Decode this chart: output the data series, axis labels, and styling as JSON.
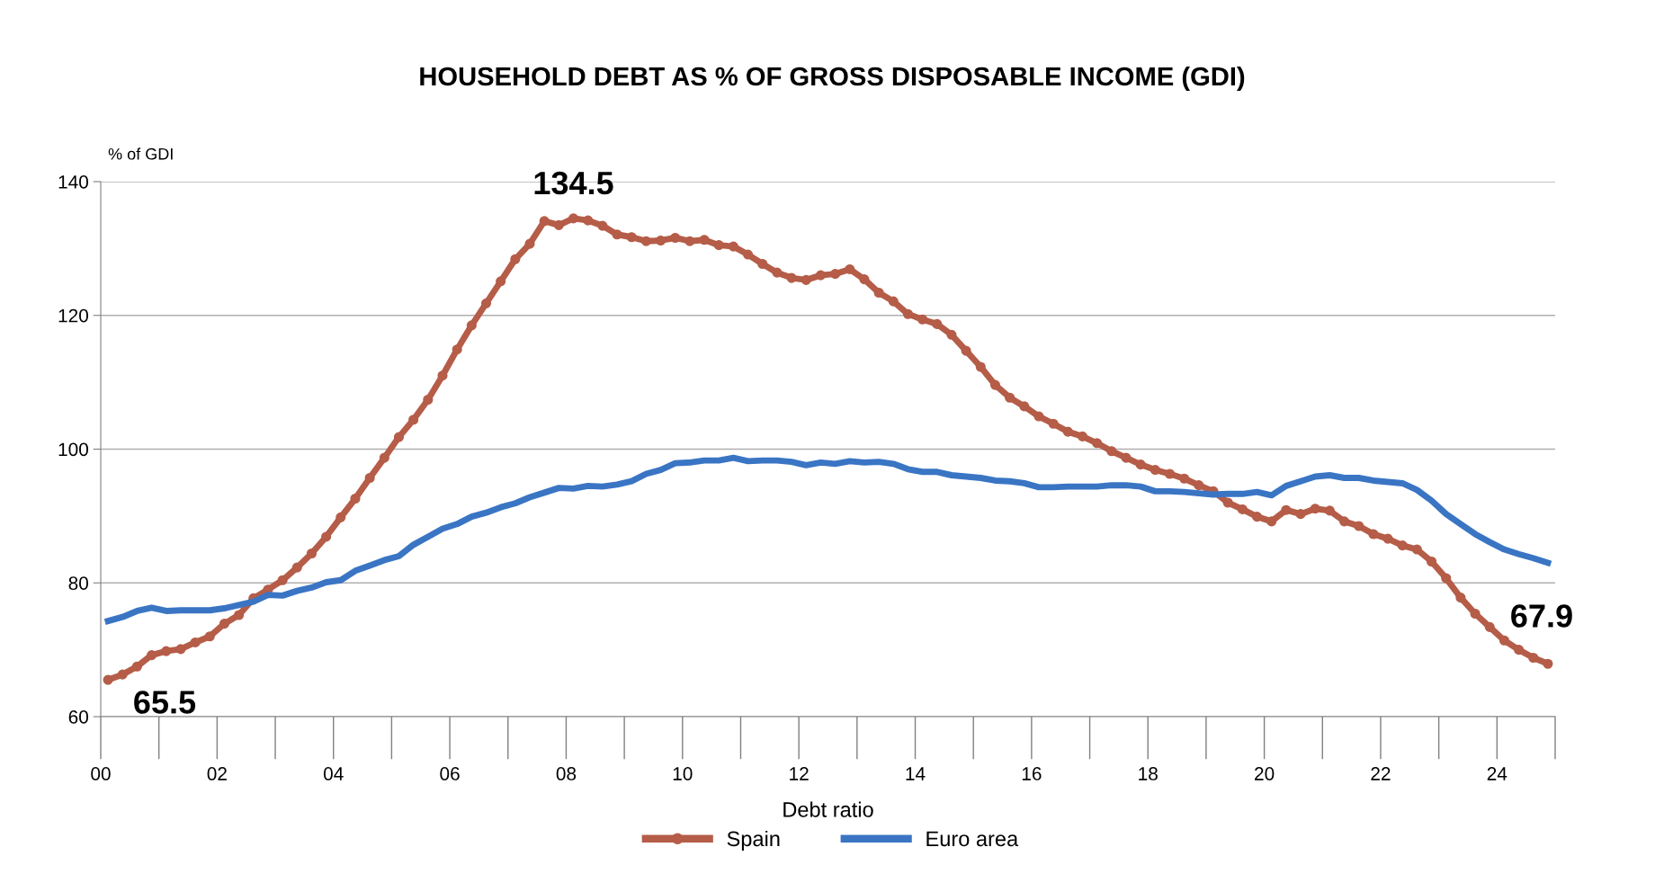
{
  "chart_data": {
    "type": "line",
    "title": "HOUSEHOLD DEBT AS % OF GROSS DISPOSABLE INCOME (GDI)",
    "ylabel": "% of GDI",
    "xlabel": "Debt ratio",
    "x": [
      0.125,
      0.375,
      0.625,
      0.875,
      1.125,
      1.375,
      1.625,
      1.875,
      2.125,
      2.375,
      2.625,
      2.875,
      3.125,
      3.375,
      3.625,
      3.875,
      4.125,
      4.375,
      4.625,
      4.875,
      5.125,
      5.375,
      5.625,
      5.875,
      6.125,
      6.375,
      6.625,
      6.875,
      7.125,
      7.375,
      7.625,
      7.875,
      8.125,
      8.375,
      8.625,
      8.875,
      9.125,
      9.375,
      9.625,
      9.875,
      10.125,
      10.375,
      10.625,
      10.875,
      11.125,
      11.375,
      11.625,
      11.875,
      12.125,
      12.375,
      12.625,
      12.875,
      13.125,
      13.375,
      13.625,
      13.875,
      14.125,
      14.375,
      14.625,
      14.875,
      15.125,
      15.375,
      15.625,
      15.875,
      16.125,
      16.375,
      16.625,
      16.875,
      17.125,
      17.375,
      17.625,
      17.875,
      18.125,
      18.375,
      18.625,
      18.875,
      19.125,
      19.375,
      19.625,
      19.875,
      20.125,
      20.375,
      20.625,
      20.875,
      21.125,
      21.375,
      21.625,
      21.875,
      22.125,
      22.375,
      22.625,
      22.875,
      23.125,
      23.375,
      23.625,
      23.875,
      24.125,
      24.375,
      24.625,
      24.875
    ],
    "series": [
      {
        "name": "Spain",
        "color": "#b55d48",
        "marker": "circle",
        "values": [
          65.5,
          66.3,
          67.5,
          69.2,
          69.8,
          70.1,
          71.1,
          72.0,
          73.9,
          75.2,
          77.7,
          79.0,
          80.4,
          82.3,
          84.4,
          86.9,
          89.8,
          92.6,
          95.7,
          98.7,
          101.8,
          104.4,
          107.4,
          111.0,
          114.9,
          118.5,
          121.8,
          125.1,
          128.4,
          130.7,
          134.1,
          133.5,
          134.5,
          134.2,
          133.4,
          132.1,
          131.7,
          131.1,
          131.2,
          131.6,
          131.1,
          131.3,
          130.5,
          130.3,
          129.1,
          127.7,
          126.4,
          125.6,
          125.3,
          126.0,
          126.2,
          126.9,
          125.4,
          123.4,
          122.1,
          120.2,
          119.4,
          118.7,
          117.1,
          114.7,
          112.3,
          109.6,
          107.7,
          106.4,
          104.9,
          103.8,
          102.6,
          101.9,
          100.9,
          99.7,
          98.7,
          97.7,
          96.9,
          96.3,
          95.6,
          94.6,
          93.7,
          92.0,
          91.0,
          89.9,
          89.2,
          90.9,
          90.3,
          91.1,
          90.8,
          89.2,
          88.5,
          87.3,
          86.6,
          85.6,
          85.0,
          83.2,
          80.7,
          77.8,
          75.4,
          73.4,
          71.4,
          70.0,
          68.8,
          67.9
        ]
      },
      {
        "name": "Euro area",
        "color": "#3a75c4",
        "values": [
          74.3,
          74.9,
          75.8,
          76.3,
          75.8,
          75.9,
          75.9,
          75.9,
          76.2,
          76.7,
          77.2,
          78.2,
          78.1,
          78.8,
          79.3,
          80.1,
          80.4,
          81.8,
          82.6,
          83.4,
          84.0,
          85.7,
          86.9,
          88.1,
          88.8,
          89.9,
          90.5,
          91.3,
          91.9,
          92.8,
          93.5,
          94.2,
          94.1,
          94.5,
          94.4,
          94.7,
          95.2,
          96.3,
          96.9,
          97.9,
          98.0,
          98.3,
          98.3,
          98.7,
          98.2,
          98.3,
          98.3,
          98.1,
          97.6,
          98.0,
          97.8,
          98.2,
          98.0,
          98.1,
          97.8,
          97.0,
          96.6,
          96.6,
          96.1,
          95.9,
          95.7,
          95.3,
          95.2,
          94.9,
          94.3,
          94.3,
          94.4,
          94.4,
          94.4,
          94.6,
          94.6,
          94.4,
          93.7,
          93.7,
          93.6,
          93.4,
          93.2,
          93.3,
          93.3,
          93.6,
          93.1,
          94.5,
          95.2,
          95.9,
          96.1,
          95.7,
          95.7,
          95.3,
          95.1,
          94.9,
          93.9,
          92.3,
          90.3,
          88.8,
          87.3,
          86.1,
          85.0,
          84.3,
          83.7,
          83.0
        ]
      }
    ],
    "xlim": [
      0,
      25
    ],
    "xticks": [
      {
        "value": 0,
        "label": "00"
      },
      {
        "value": 2,
        "label": "02"
      },
      {
        "value": 4,
        "label": "04"
      },
      {
        "value": 6,
        "label": "06"
      },
      {
        "value": 8,
        "label": "08"
      },
      {
        "value": 10,
        "label": "10"
      },
      {
        "value": 12,
        "label": "12"
      },
      {
        "value": 14,
        "label": "14"
      },
      {
        "value": 16,
        "label": "16"
      },
      {
        "value": 18,
        "label": "18"
      },
      {
        "value": 20,
        "label": "20"
      },
      {
        "value": 22,
        "label": "22"
      },
      {
        "value": 24,
        "label": "24"
      }
    ],
    "ylim": [
      60,
      140
    ],
    "yticks": [
      60,
      80,
      100,
      120,
      140
    ],
    "grid": "y",
    "legend": "bottom",
    "line_style": "solid",
    "annotations": [
      {
        "text": "134.5",
        "x": 8.125,
        "y": 134.5
      },
      {
        "text": "65.5",
        "x": 0.125,
        "y": 65.5
      },
      {
        "text": "67.9",
        "x": 24.875,
        "y": 67.9
      }
    ]
  }
}
